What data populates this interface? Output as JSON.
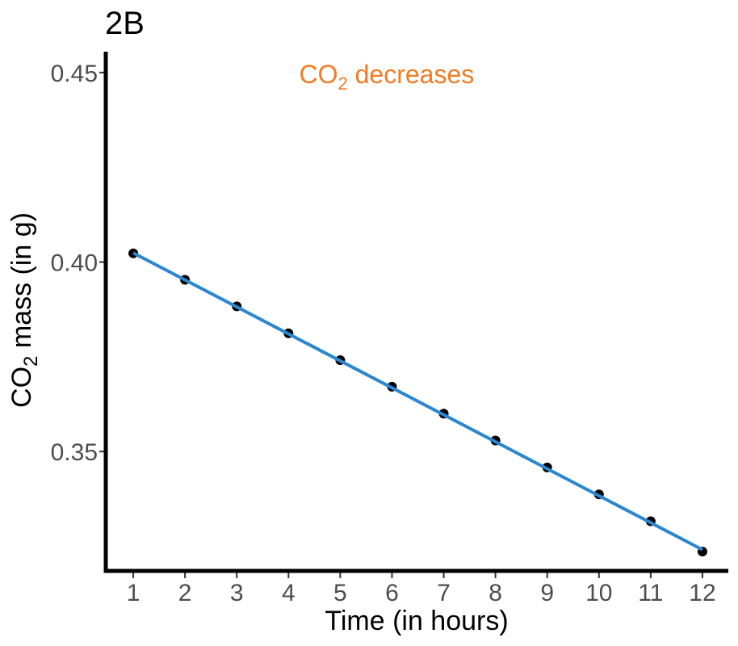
{
  "chart_data": {
    "type": "scatter",
    "title": "2B",
    "xlabel": "Time (in hours)",
    "ylabel": {
      "prefix": "CO",
      "sub": "2",
      "suffix": " mass (in g)"
    },
    "xlim": [
      0.5,
      12.5
    ],
    "ylim": [
      0.3185,
      0.4555
    ],
    "x_ticks": [
      "1",
      "2",
      "3",
      "4",
      "5",
      "6",
      "7",
      "8",
      "9",
      "10",
      "11",
      "12"
    ],
    "y_ticks": [
      "0.35",
      "0.40",
      "0.45"
    ],
    "grid": false,
    "series": [
      {
        "x": [
          1,
          2,
          3,
          4,
          5,
          6,
          7,
          8,
          9,
          10,
          11,
          12
        ],
        "values": [
          0.4023,
          0.3953,
          0.3883,
          0.3812,
          0.3741,
          0.3671,
          0.36,
          0.3529,
          0.3458,
          0.3387,
          0.3316,
          0.3236
        ]
      }
    ],
    "trend_line": {
      "x_start": 1,
      "y_start": 0.4024,
      "x_end": 12,
      "y_end": 0.3241
    },
    "annotation": {
      "prefix": "CO",
      "sub": "2",
      "suffix": " decreases",
      "x": 6.0,
      "y": 0.4495
    },
    "colors": {
      "points": "#000000",
      "line": "#2b87d1",
      "annotation": "#f57a23",
      "axis": "#000000"
    }
  }
}
